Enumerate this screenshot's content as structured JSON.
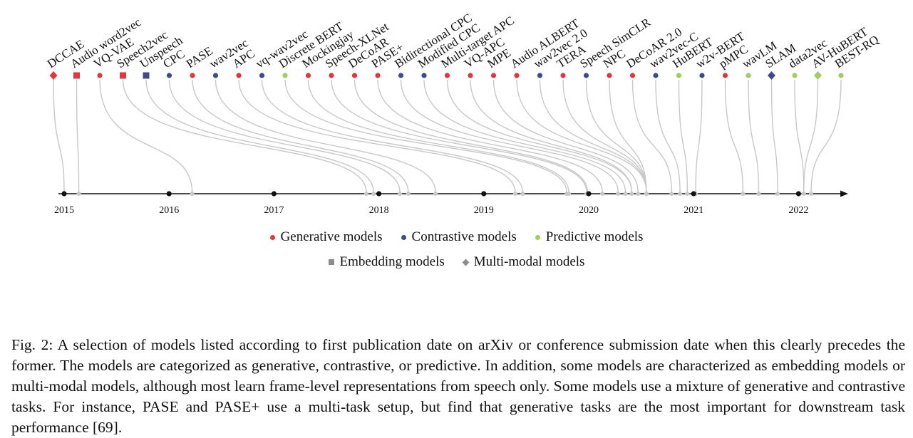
{
  "colors": {
    "generative": "#e3353c",
    "contrastive": "#3d4a8c",
    "predictive": "#9ccf5f",
    "neutral": "#8c8c8c",
    "connector": "#c8c8c8"
  },
  "timeline": {
    "years": [
      "2015",
      "2016",
      "2017",
      "2018",
      "2019",
      "2020",
      "2021",
      "2022"
    ],
    "start_year": 2015,
    "end_year": 2022.5
  },
  "models": [
    {
      "name": "DCCAE",
      "type": "generative",
      "shape": "diamond",
      "date": 2015.0
    },
    {
      "name": "Audio word2vec",
      "type": "generative",
      "shape": "square",
      "date": 2015.14
    },
    {
      "name": "VQ-VAE",
      "type": "generative",
      "shape": "circle",
      "date": 2016.22
    },
    {
      "name": "Speech2vec",
      "type": "generative",
      "shape": "square",
      "date": 2017.88
    },
    {
      "name": "Unspeech",
      "type": "contrastive",
      "shape": "square",
      "date": 2017.95
    },
    {
      "name": "CPC",
      "type": "contrastive",
      "shape": "circle",
      "date": 2018.2
    },
    {
      "name": "PASE",
      "type": "generative",
      "shape": "circle",
      "date": 2018.28
    },
    {
      "name": "wav2vec",
      "type": "contrastive",
      "shape": "circle",
      "date": 2018.54
    },
    {
      "name": "APC",
      "type": "generative",
      "shape": "circle",
      "date": 2019.3
    },
    {
      "name": "vq-wav2vec",
      "type": "contrastive",
      "shape": "circle",
      "date": 2019.37
    },
    {
      "name": "Discrete BERT",
      "type": "predictive",
      "shape": "circle",
      "date": 2019.79
    },
    {
      "name": "Mockingjay",
      "type": "generative",
      "shape": "circle",
      "date": 2019.81
    },
    {
      "name": "Speech-XLNet",
      "type": "generative",
      "shape": "circle",
      "date": 2019.98
    },
    {
      "name": "DeCoAR",
      "type": "generative",
      "shape": "circle",
      "date": 2019.99
    },
    {
      "name": "PASE+",
      "type": "generative",
      "shape": "circle",
      "date": 2020.13
    },
    {
      "name": "Bidirectional CPC",
      "type": "contrastive",
      "shape": "circle",
      "date": 2020.28
    },
    {
      "name": "Modified CPC",
      "type": "contrastive",
      "shape": "circle",
      "date": 2020.35
    },
    {
      "name": "Multi-target APC",
      "type": "generative",
      "shape": "circle",
      "date": 2020.41
    },
    {
      "name": "VQ-APC",
      "type": "generative",
      "shape": "circle",
      "date": 2020.41
    },
    {
      "name": "MPE",
      "type": "generative",
      "shape": "circle",
      "date": 2020.47
    },
    {
      "name": "Audio ALBERT",
      "type": "generative",
      "shape": "circle",
      "date": 2020.55
    },
    {
      "name": "wav2vec 2.0",
      "type": "contrastive",
      "shape": "circle",
      "date": 2020.55
    },
    {
      "name": "TERA",
      "type": "generative",
      "shape": "circle",
      "date": 2020.55
    },
    {
      "name": "Speech SimCLR",
      "type": "contrastive",
      "shape": "circle",
      "date": 2020.55
    },
    {
      "name": "NPC",
      "type": "generative",
      "shape": "circle",
      "date": 2020.55
    },
    {
      "name": "DeCoAR 2.0",
      "type": "generative",
      "shape": "circle",
      "date": 2020.79
    },
    {
      "name": "wav2vec-C",
      "type": "contrastive",
      "shape": "circle",
      "date": 2020.87
    },
    {
      "name": "HuBERT",
      "type": "predictive",
      "shape": "circle",
      "date": 2020.94
    },
    {
      "name": "w2v-BERT",
      "type": "contrastive",
      "shape": "circle",
      "date": 2021.02
    },
    {
      "name": "pMPC",
      "type": "generative",
      "shape": "circle",
      "date": 2021.47
    },
    {
      "name": "wavLM",
      "type": "predictive",
      "shape": "circle",
      "date": 2021.62
    },
    {
      "name": "SLAM",
      "type": "contrastive",
      "shape": "diamond",
      "date": 2021.8
    },
    {
      "name": "data2vec",
      "type": "predictive",
      "shape": "circle",
      "date": 2022.05
    },
    {
      "name": "AV-HuBERT",
      "type": "predictive",
      "shape": "diamond",
      "date": 2022.05
    },
    {
      "name": "BEST-RQ",
      "type": "predictive",
      "shape": "circle",
      "date": 2022.12
    }
  ],
  "legend": {
    "row1": [
      {
        "label": "Generative models",
        "shape": "circle",
        "color_key": "generative"
      },
      {
        "label": "Contrastive models",
        "shape": "circle",
        "color_key": "contrastive"
      },
      {
        "label": "Predictive models",
        "shape": "circle",
        "color_key": "predictive"
      }
    ],
    "row2": [
      {
        "label": "Embedding models",
        "shape": "square",
        "color_key": "neutral"
      },
      {
        "label": "Multi-modal models",
        "shape": "diamond",
        "color_key": "neutral"
      }
    ]
  },
  "caption": "Fig. 2: A selection of models listed according to first publication date on arXiv or conference submission date when this clearly precedes the former. The models are categorized as generative, contrastive, or predictive. In addition, some models are characterized as embedding models or multi-modal models, although most learn frame-level representations from speech only. Some models use a mixture of generative and contrastive tasks. For instance, PASE and PASE+ use a multi-task setup, but find that generative tasks are the most important for downstream task performance [69]."
}
